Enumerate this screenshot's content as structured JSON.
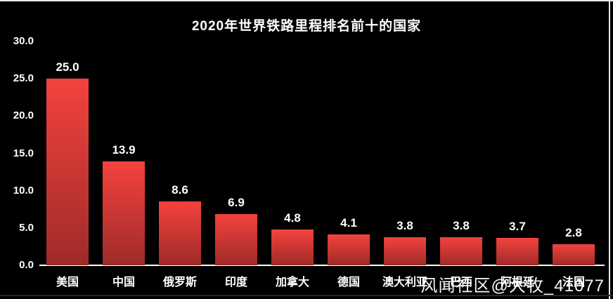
{
  "watermark": "风闻社区@大牧_41077",
  "chart_data": {
    "type": "bar",
    "title": "2020年世界铁路里程排名前十的国家",
    "categories": [
      "美国",
      "中国",
      "俄罗斯",
      "印度",
      "加拿大",
      "德国",
      "澳大利亚",
      "巴西",
      "阿根廷",
      "法国"
    ],
    "values": [
      25.0,
      13.9,
      8.6,
      6.9,
      4.8,
      4.1,
      3.8,
      3.8,
      3.7,
      2.8
    ],
    "value_labels": [
      "25.0",
      "13.9",
      "8.6",
      "6.9",
      "4.8",
      "4.1",
      "3.8",
      "3.8",
      "3.7",
      "2.8"
    ],
    "yticks": [
      {
        "value": 0,
        "label": "0.0"
      },
      {
        "value": 5,
        "label": "5.0"
      },
      {
        "value": 10,
        "label": "10.0"
      },
      {
        "value": 15,
        "label": "15.0"
      },
      {
        "value": 20,
        "label": "20.0"
      },
      {
        "value": 25,
        "label": "25.0"
      },
      {
        "value": 30,
        "label": "30.0"
      }
    ],
    "ylim": [
      0,
      30
    ],
    "xlabel": "",
    "ylabel": "",
    "grid": false,
    "legend_position": "none",
    "colors": {
      "background": "#000000",
      "bar_gradient_top": "#f4423e",
      "bar_gradient_bottom": "#9e2b28",
      "text": "#ffffff",
      "axis_line": "#ffffff"
    }
  }
}
